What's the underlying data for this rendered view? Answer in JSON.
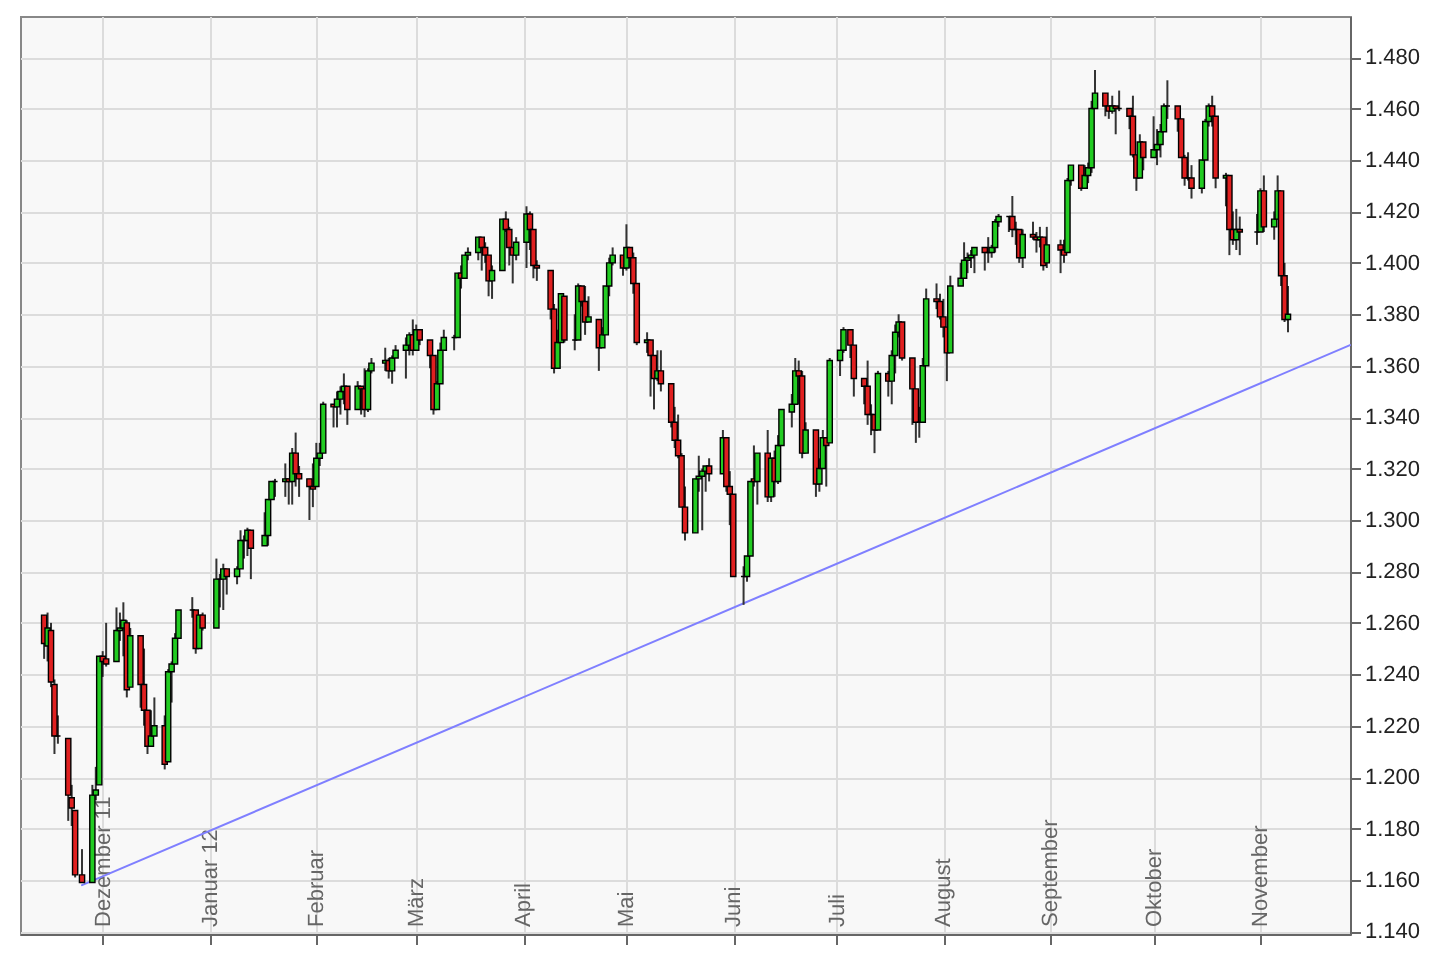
{
  "chart_data": {
    "type": "candlestick",
    "x": [
      "2011-11-14",
      "2011-11-15",
      "2011-11-16",
      "2011-11-17",
      "2011-11-18",
      "2011-11-21",
      "2011-11-22",
      "2011-11-23",
      "2011-11-25",
      "2011-11-28",
      "2011-11-29",
      "2011-11-30",
      "2011-12-01",
      "2011-12-02",
      "2011-12-05",
      "2011-12-06",
      "2011-12-07",
      "2011-12-08",
      "2011-12-09",
      "2011-12-12",
      "2011-12-13",
      "2011-12-14",
      "2011-12-15",
      "2011-12-16",
      "2011-12-19",
      "2011-12-20",
      "2011-12-21",
      "2011-12-22",
      "2011-12-23",
      "2011-12-27",
      "2011-12-28",
      "2011-12-29",
      "2011-12-30",
      "2012-01-03",
      "2012-01-04",
      "2012-01-05",
      "2012-01-06",
      "2012-01-09",
      "2012-01-10",
      "2012-01-11",
      "2012-01-12",
      "2012-01-13",
      "2012-01-17",
      "2012-01-18",
      "2012-01-19",
      "2012-01-20",
      "2012-01-23",
      "2012-01-24",
      "2012-01-25",
      "2012-01-26",
      "2012-01-27",
      "2012-01-30",
      "2012-01-31",
      "2012-02-01",
      "2012-02-02",
      "2012-02-03",
      "2012-02-06",
      "2012-02-07",
      "2012-02-08",
      "2012-02-09",
      "2012-02-10",
      "2012-02-13",
      "2012-02-14",
      "2012-02-15",
      "2012-02-16",
      "2012-02-17",
      "2012-02-21",
      "2012-02-22",
      "2012-02-23",
      "2012-02-24",
      "2012-02-27",
      "2012-02-28",
      "2012-02-29",
      "2012-03-01",
      "2012-03-02",
      "2012-03-05",
      "2012-03-06",
      "2012-03-07",
      "2012-03-08",
      "2012-03-09",
      "2012-03-12",
      "2012-03-13",
      "2012-03-14",
      "2012-03-15",
      "2012-03-16",
      "2012-03-19",
      "2012-03-20",
      "2012-03-21",
      "2012-03-22",
      "2012-03-23",
      "2012-03-26",
      "2012-03-27",
      "2012-03-28",
      "2012-03-29",
      "2012-03-30",
      "2012-04-02",
      "2012-04-03",
      "2012-04-04",
      "2012-04-05",
      "2012-04-09",
      "2012-04-10",
      "2012-04-11",
      "2012-04-12",
      "2012-04-13",
      "2012-04-16",
      "2012-04-17",
      "2012-04-18",
      "2012-04-19",
      "2012-04-20",
      "2012-04-23",
      "2012-04-24",
      "2012-04-25",
      "2012-04-26",
      "2012-04-27",
      "2012-04-30",
      "2012-05-01",
      "2012-05-02",
      "2012-05-03",
      "2012-05-04",
      "2012-05-07",
      "2012-05-08",
      "2012-05-09",
      "2012-05-10",
      "2012-05-11",
      "2012-05-14",
      "2012-05-15",
      "2012-05-16",
      "2012-05-17",
      "2012-05-18",
      "2012-05-21",
      "2012-05-22",
      "2012-05-23",
      "2012-05-24",
      "2012-05-25",
      "2012-05-29",
      "2012-05-30",
      "2012-05-31",
      "2012-06-01",
      "2012-06-04",
      "2012-06-05",
      "2012-06-06",
      "2012-06-07",
      "2012-06-08",
      "2012-06-11",
      "2012-06-12",
      "2012-06-13",
      "2012-06-14",
      "2012-06-15",
      "2012-06-18",
      "2012-06-19",
      "2012-06-20",
      "2012-06-21",
      "2012-06-22",
      "2012-06-25",
      "2012-06-26",
      "2012-06-27",
      "2012-06-28",
      "2012-06-29",
      "2012-07-02",
      "2012-07-03",
      "2012-07-05",
      "2012-07-06",
      "2012-07-09",
      "2012-07-10",
      "2012-07-11",
      "2012-07-12",
      "2012-07-13",
      "2012-07-16",
      "2012-07-17",
      "2012-07-18",
      "2012-07-19",
      "2012-07-20",
      "2012-07-23",
      "2012-07-24",
      "2012-07-25",
      "2012-07-26",
      "2012-07-27",
      "2012-07-30",
      "2012-07-31",
      "2012-08-01",
      "2012-08-02",
      "2012-08-03",
      "2012-08-06",
      "2012-08-07",
      "2012-08-08",
      "2012-08-09",
      "2012-08-10",
      "2012-08-13",
      "2012-08-14",
      "2012-08-15",
      "2012-08-16",
      "2012-08-17",
      "2012-08-20",
      "2012-08-21",
      "2012-08-22",
      "2012-08-23",
      "2012-08-24",
      "2012-08-27",
      "2012-08-28",
      "2012-08-29",
      "2012-08-30",
      "2012-08-31",
      "2012-09-04",
      "2012-09-05",
      "2012-09-06",
      "2012-09-07",
      "2012-09-10",
      "2012-09-11",
      "2012-09-12",
      "2012-09-13",
      "2012-09-14",
      "2012-09-17",
      "2012-09-18",
      "2012-09-19",
      "2012-09-20",
      "2012-09-21",
      "2012-09-24",
      "2012-09-25",
      "2012-09-26",
      "2012-09-27",
      "2012-09-28",
      "2012-10-01",
      "2012-10-02",
      "2012-10-03",
      "2012-10-04",
      "2012-10-05",
      "2012-10-08",
      "2012-10-09",
      "2012-10-10",
      "2012-10-11",
      "2012-10-12",
      "2012-10-15",
      "2012-10-16",
      "2012-10-17",
      "2012-10-18",
      "2012-10-19",
      "2012-10-22",
      "2012-10-23",
      "2012-10-24",
      "2012-10-25",
      "2012-10-26",
      "2012-10-31",
      "2012-11-01",
      "2012-11-02",
      "2012-11-05",
      "2012-11-06",
      "2012-11-07",
      "2012-11-08",
      "2012-11-09"
    ],
    "ohlc": [
      [
        1263,
        1263,
        1246,
        1252
      ],
      [
        1251,
        1264,
        1245,
        1258
      ],
      [
        1257,
        1260,
        1235,
        1237
      ],
      [
        1236,
        1238,
        1209,
        1216
      ],
      [
        1216,
        1224,
        1213,
        1216
      ],
      [
        1215,
        1215,
        1183,
        1193
      ],
      [
        1192,
        1197,
        1181,
        1188
      ],
      [
        1187,
        1187,
        1161,
        1162
      ],
      [
        1162,
        1172,
        1159,
        1159
      ],
      [
        1159,
        1197,
        1159,
        1193
      ],
      [
        1193,
        1204,
        1191,
        1195
      ],
      [
        1197,
        1247,
        1197,
        1247
      ],
      [
        1247,
        1249,
        1239,
        1245
      ],
      [
        1246,
        1260,
        1243,
        1244
      ],
      [
        1245,
        1266,
        1245,
        1257
      ],
      [
        1257,
        1264,
        1253,
        1258
      ],
      [
        1258,
        1268,
        1247,
        1261
      ],
      [
        1260,
        1261,
        1231,
        1234
      ],
      [
        1235,
        1258,
        1235,
        1255
      ],
      [
        1255,
        1255,
        1227,
        1236
      ],
      [
        1236,
        1250,
        1220,
        1226
      ],
      [
        1226,
        1226,
        1209,
        1212
      ],
      [
        1212,
        1226,
        1212,
        1216
      ],
      [
        1216,
        1231,
        1216,
        1220
      ],
      [
        1220,
        1224,
        1203,
        1205
      ],
      [
        1206,
        1242,
        1206,
        1241
      ],
      [
        1241,
        1245,
        1229,
        1244
      ],
      [
        1244,
        1256,
        1244,
        1254
      ],
      [
        1254,
        1265,
        1254,
        1265
      ],
      [
        1265,
        1270,
        1262,
        1265
      ],
      [
        1265,
        1265,
        1248,
        1250
      ],
      [
        1250,
        1263,
        1250,
        1263
      ],
      [
        1263,
        1264,
        1257,
        1258
      ],
      [
        1258,
        1285,
        1258,
        1277
      ],
      [
        1277,
        1279,
        1266,
        1277
      ],
      [
        1277,
        1283,
        1265,
        1281
      ],
      [
        1281,
        1281,
        1271,
        1278
      ],
      [
        1278,
        1282,
        1275,
        1281
      ],
      [
        1281,
        1296,
        1281,
        1292
      ],
      [
        1292,
        1294,
        1285,
        1292
      ],
      [
        1292,
        1297,
        1286,
        1296
      ],
      [
        1296,
        1296,
        1277,
        1289
      ],
      [
        1290,
        1303,
        1290,
        1294
      ],
      [
        1294,
        1308,
        1290,
        1308
      ],
      [
        1308,
        1315,
        1308,
        1315
      ],
      [
        1315,
        1316,
        1309,
        1315
      ],
      [
        1315,
        1322,
        1309,
        1316
      ],
      [
        1316,
        1316,
        1306,
        1315
      ],
      [
        1315,
        1328,
        1306,
        1326
      ],
      [
        1326,
        1334,
        1313,
        1318
      ],
      [
        1318,
        1321,
        1309,
        1316
      ],
      [
        1316,
        1316,
        1300,
        1313
      ],
      [
        1313,
        1322,
        1305,
        1312
      ],
      [
        1313,
        1330,
        1313,
        1324
      ],
      [
        1324,
        1330,
        1321,
        1326
      ],
      [
        1326,
        1346,
        1326,
        1345
      ],
      [
        1345,
        1345,
        1336,
        1344
      ],
      [
        1344,
        1350,
        1336,
        1347
      ],
      [
        1347,
        1352,
        1341,
        1350
      ],
      [
        1350,
        1357,
        1345,
        1352
      ],
      [
        1352,
        1352,
        1337,
        1343
      ],
      [
        1343,
        1354,
        1343,
        1352
      ],
      [
        1352,
        1352,
        1341,
        1351
      ],
      [
        1351,
        1359,
        1340,
        1343
      ],
      [
        1343,
        1359,
        1342,
        1358
      ],
      [
        1358,
        1363,
        1357,
        1361
      ],
      [
        1361,
        1367,
        1358,
        1362
      ],
      [
        1362,
        1363,
        1355,
        1358
      ],
      [
        1358,
        1364,
        1353,
        1363
      ],
      [
        1363,
        1368,
        1363,
        1366
      ],
      [
        1366,
        1371,
        1355,
        1368
      ],
      [
        1368,
        1373,
        1364,
        1372
      ],
      [
        1372,
        1378,
        1364,
        1366
      ],
      [
        1366,
        1376,
        1366,
        1374
      ],
      [
        1374,
        1374,
        1368,
        1370
      ],
      [
        1370,
        1370,
        1359,
        1364
      ],
      [
        1364,
        1364,
        1341,
        1343
      ],
      [
        1343,
        1354,
        1343,
        1353
      ],
      [
        1353,
        1369,
        1353,
        1366
      ],
      [
        1366,
        1374,
        1366,
        1371
      ],
      [
        1371,
        1372,
        1366,
        1371
      ],
      [
        1371,
        1396,
        1371,
        1396
      ],
      [
        1396,
        1399,
        1390,
        1394
      ],
      [
        1394,
        1403,
        1394,
        1403
      ],
      [
        1403,
        1406,
        1401,
        1404
      ],
      [
        1404,
        1410,
        1401,
        1410
      ],
      [
        1410,
        1410,
        1397,
        1406
      ],
      [
        1406,
        1408,
        1400,
        1403
      ],
      [
        1403,
        1403,
        1387,
        1393
      ],
      [
        1393,
        1399,
        1386,
        1397
      ],
      [
        1397,
        1417,
        1397,
        1417
      ],
      [
        1417,
        1420,
        1412,
        1413
      ],
      [
        1413,
        1414,
        1399,
        1406
      ],
      [
        1406,
        1406,
        1392,
        1403
      ],
      [
        1403,
        1410,
        1401,
        1408
      ],
      [
        1408,
        1422,
        1398,
        1419
      ],
      [
        1419,
        1420,
        1405,
        1413
      ],
      [
        1413,
        1413,
        1394,
        1399
      ],
      [
        1399,
        1401,
        1393,
        1398
      ],
      [
        1397,
        1397,
        1378,
        1382
      ],
      [
        1382,
        1384,
        1357,
        1359
      ],
      [
        1359,
        1374,
        1359,
        1369
      ],
      [
        1369,
        1388,
        1369,
        1388
      ],
      [
        1387,
        1387,
        1369,
        1370
      ],
      [
        1370,
        1380,
        1366,
        1370
      ],
      [
        1370,
        1392,
        1370,
        1391
      ],
      [
        1391,
        1391,
        1383,
        1385
      ],
      [
        1385,
        1391,
        1372,
        1377
      ],
      [
        1377,
        1387,
        1377,
        1379
      ],
      [
        1378,
        1378,
        1358,
        1367
      ],
      [
        1367,
        1375,
        1367,
        1372
      ],
      [
        1372,
        1391,
        1372,
        1391
      ],
      [
        1391,
        1402,
        1387,
        1400
      ],
      [
        1400,
        1406,
        1399,
        1403
      ],
      [
        1403,
        1403,
        1395,
        1398
      ],
      [
        1398,
        1415,
        1397,
        1406
      ],
      [
        1406,
        1406,
        1398,
        1402
      ],
      [
        1402,
        1404,
        1388,
        1392
      ],
      [
        1392,
        1392,
        1368,
        1369
      ],
      [
        1369,
        1373,
        1365,
        1370
      ],
      [
        1370,
        1370,
        1348,
        1364
      ],
      [
        1364,
        1364,
        1343,
        1355
      ],
      [
        1355,
        1366,
        1354,
        1358
      ],
      [
        1358,
        1366,
        1350,
        1353
      ],
      [
        1353,
        1353,
        1336,
        1338
      ],
      [
        1338,
        1344,
        1328,
        1331
      ],
      [
        1331,
        1341,
        1324,
        1325
      ],
      [
        1325,
        1326,
        1305,
        1305
      ],
      [
        1305,
        1313,
        1292,
        1295
      ],
      [
        1295,
        1316,
        1295,
        1316
      ],
      [
        1316,
        1325,
        1311,
        1317
      ],
      [
        1317,
        1320,
        1296,
        1319
      ],
      [
        1319,
        1321,
        1311,
        1321
      ],
      [
        1321,
        1324,
        1315,
        1318
      ],
      [
        1318,
        1335,
        1318,
        1332
      ],
      [
        1332,
        1332,
        1311,
        1313
      ],
      [
        1313,
        1319,
        1298,
        1310
      ],
      [
        1310,
        1310,
        1278,
        1278
      ],
      [
        1278,
        1282,
        1267,
        1278
      ],
      [
        1278,
        1286,
        1276,
        1286
      ],
      [
        1286,
        1315,
        1286,
        1315
      ],
      [
        1316,
        1329,
        1313,
        1315
      ],
      [
        1315,
        1326,
        1306,
        1326
      ],
      [
        1326,
        1335,
        1307,
        1309
      ],
      [
        1309,
        1324,
        1307,
        1324
      ],
      [
        1324,
        1327,
        1309,
        1315
      ],
      [
        1315,
        1333,
        1314,
        1329
      ],
      [
        1329,
        1343,
        1329,
        1343
      ],
      [
        1342,
        1349,
        1336,
        1345
      ],
      [
        1345,
        1363,
        1345,
        1358
      ],
      [
        1358,
        1362,
        1345,
        1356
      ],
      [
        1356,
        1358,
        1324,
        1326
      ],
      [
        1326,
        1338,
        1326,
        1335
      ],
      [
        1335,
        1335,
        1309,
        1314
      ],
      [
        1314,
        1324,
        1311,
        1320
      ],
      [
        1320,
        1335,
        1320,
        1332
      ],
      [
        1332,
        1332,
        1313,
        1329
      ],
      [
        1330,
        1363,
        1330,
        1362
      ],
      [
        1362,
        1366,
        1356,
        1366
      ],
      [
        1366,
        1375,
        1365,
        1374
      ],
      [
        1374,
        1374,
        1363,
        1368
      ],
      [
        1368,
        1368,
        1348,
        1355
      ],
      [
        1355,
        1355,
        1345,
        1352
      ],
      [
        1352,
        1362,
        1337,
        1341
      ],
      [
        1341,
        1345,
        1333,
        1341
      ],
      [
        1341,
        1341,
        1326,
        1335
      ],
      [
        1335,
        1358,
        1335,
        1357
      ],
      [
        1357,
        1358,
        1348,
        1354
      ],
      [
        1354,
        1366,
        1345,
        1364
      ],
      [
        1364,
        1376,
        1357,
        1373
      ],
      [
        1373,
        1380,
        1371,
        1377
      ],
      [
        1377,
        1377,
        1362,
        1363
      ],
      [
        1363,
        1363,
        1337,
        1351
      ],
      [
        1351,
        1351,
        1330,
        1338
      ],
      [
        1338,
        1344,
        1332,
        1338
      ],
      [
        1338,
        1363,
        1338,
        1360
      ],
      [
        1360,
        1390,
        1360,
        1386
      ],
      [
        1386,
        1392,
        1382,
        1385
      ],
      [
        1385,
        1388,
        1378,
        1379
      ],
      [
        1379,
        1386,
        1371,
        1375
      ],
      [
        1375,
        1375,
        1354,
        1365
      ],
      [
        1365,
        1395,
        1365,
        1391
      ],
      [
        1391,
        1400,
        1391,
        1394
      ],
      [
        1394,
        1408,
        1394,
        1401
      ],
      [
        1401,
        1404,
        1396,
        1402
      ],
      [
        1402,
        1405,
        1398,
        1403
      ],
      [
        1403,
        1406,
        1396,
        1406
      ],
      [
        1406,
        1406,
        1397,
        1404
      ],
      [
        1404,
        1410,
        1400,
        1404
      ],
      [
        1404,
        1407,
        1402,
        1406
      ],
      [
        1406,
        1417,
        1404,
        1416
      ],
      [
        1416,
        1419,
        1414,
        1418
      ],
      [
        1418,
        1418,
        1412,
        1418
      ],
      [
        1418,
        1426,
        1410,
        1413
      ],
      [
        1413,
        1416,
        1407,
        1413
      ],
      [
        1413,
        1413,
        1400,
        1402
      ],
      [
        1402,
        1413,
        1398,
        1411
      ],
      [
        1411,
        1416,
        1409,
        1410
      ],
      [
        1410,
        1412,
        1404,
        1409
      ],
      [
        1409,
        1414,
        1406,
        1410
      ],
      [
        1410,
        1410,
        1397,
        1399
      ],
      [
        1400,
        1414,
        1398,
        1407
      ],
      [
        1407,
        1409,
        1396,
        1405
      ],
      [
        1405,
        1409,
        1400,
        1403
      ],
      [
        1404,
        1433,
        1404,
        1432
      ],
      [
        1432,
        1438,
        1430,
        1438
      ],
      [
        1438,
        1438,
        1428,
        1429
      ],
      [
        1429,
        1438,
        1429,
        1434
      ],
      [
        1434,
        1439,
        1431,
        1437
      ],
      [
        1437,
        1463,
        1435,
        1460
      ],
      [
        1460,
        1475,
        1460,
        1466
      ],
      [
        1466,
        1466,
        1457,
        1461
      ],
      [
        1461,
        1461,
        1456,
        1459
      ],
      [
        1459,
        1465,
        1458,
        1461
      ],
      [
        1461,
        1461,
        1450,
        1460
      ],
      [
        1460,
        1467,
        1459,
        1460
      ],
      [
        1460,
        1460,
        1452,
        1457
      ],
      [
        1457,
        1465,
        1441,
        1442
      ],
      [
        1442,
        1442,
        1428,
        1433
      ],
      [
        1433,
        1450,
        1433,
        1447
      ],
      [
        1447,
        1447,
        1436,
        1441
      ],
      [
        1441,
        1457,
        1441,
        1444
      ],
      [
        1444,
        1452,
        1438,
        1446
      ],
      [
        1446,
        1454,
        1441,
        1451
      ],
      [
        1451,
        1462,
        1451,
        1461
      ],
      [
        1461,
        1471,
        1456,
        1461
      ],
      [
        1461,
        1461,
        1451,
        1456
      ],
      [
        1456,
        1456,
        1441,
        1441
      ],
      [
        1441,
        1442,
        1430,
        1433
      ],
      [
        1433,
        1443,
        1432,
        1433
      ],
      [
        1433,
        1438,
        1425,
        1429
      ],
      [
        1429,
        1440,
        1427,
        1440
      ],
      [
        1440,
        1456,
        1440,
        1455
      ],
      [
        1455,
        1462,
        1453,
        1461
      ],
      [
        1461,
        1465,
        1453,
        1457
      ],
      [
        1457,
        1457,
        1429,
        1433
      ],
      [
        1433,
        1435,
        1422,
        1434
      ],
      [
        1434,
        1434,
        1403,
        1413
      ],
      [
        1413,
        1420,
        1407,
        1409
      ],
      [
        1409,
        1421,
        1405,
        1413
      ],
      [
        1413,
        1418,
        1403,
        1412
      ],
      [
        1412,
        1419,
        1407,
        1412
      ],
      [
        1412,
        1429,
        1412,
        1428
      ],
      [
        1428,
        1434,
        1412,
        1414
      ],
      [
        1414,
        1420,
        1409,
        1417
      ],
      [
        1417,
        1434,
        1417,
        1428
      ],
      [
        1428,
        1428,
        1391,
        1395
      ],
      [
        1395,
        1400,
        1377,
        1378
      ],
      [
        1378,
        1391,
        1373,
        1380
      ]
    ],
    "series": [
      {
        "type": "line",
        "x": [
          "2011-11-25",
          "2012-11-27"
        ],
        "values": [
          1158,
          1368
        ],
        "color": "#7f7fff"
      }
    ],
    "xlim": [
      "2011-11-07",
      "2012-11-27"
    ],
    "xticks": [
      {
        "value": "2011-12-01",
        "label": "Dezember 11"
      },
      {
        "value": "2012-01-01",
        "label": "Januar 12"
      },
      {
        "value": "2012-02-01",
        "label": "Februar"
      },
      {
        "value": "2012-03-01",
        "label": "März"
      },
      {
        "value": "2012-04-01",
        "label": "April"
      },
      {
        "value": "2012-05-01",
        "label": "Mai"
      },
      {
        "value": "2012-06-01",
        "label": "Juni"
      },
      {
        "value": "2012-07-01",
        "label": "Juli"
      },
      {
        "value": "2012-08-01",
        "label": "August"
      },
      {
        "value": "2012-09-01",
        "label": "September"
      },
      {
        "value": "2012-10-01",
        "label": "Oktober"
      },
      {
        "value": "2012-11-01",
        "label": "November"
      }
    ],
    "ylim": [
      1139,
      1496
    ],
    "yticks": [
      {
        "value": 1140,
        "label": "1.140"
      },
      {
        "value": 1160,
        "label": "1.160"
      },
      {
        "value": 1180,
        "label": "1.180"
      },
      {
        "value": 1200,
        "label": "1.200"
      },
      {
        "value": 1220,
        "label": "1.220"
      },
      {
        "value": 1240,
        "label": "1.240"
      },
      {
        "value": 1260,
        "label": "1.260"
      },
      {
        "value": 1280,
        "label": "1.280"
      },
      {
        "value": 1300,
        "label": "1.300"
      },
      {
        "value": 1320,
        "label": "1.320"
      },
      {
        "value": 1340,
        "label": "1.340"
      },
      {
        "value": 1360,
        "label": "1.360"
      },
      {
        "value": 1380,
        "label": "1.380"
      },
      {
        "value": 1400,
        "label": "1.400"
      },
      {
        "value": 1420,
        "label": "1.420"
      },
      {
        "value": 1440,
        "label": "1.440"
      },
      {
        "value": 1460,
        "label": "1.460"
      },
      {
        "value": 1480,
        "label": "1.480"
      }
    ],
    "grid": true
  }
}
